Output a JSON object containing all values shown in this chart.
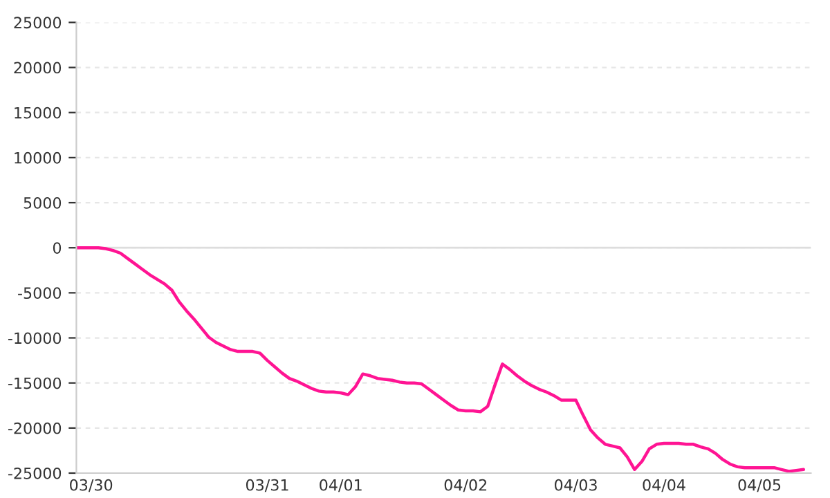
{
  "chart_data": {
    "type": "line",
    "categories": [
      null,
      null,
      "03/30",
      null,
      null,
      null,
      null,
      null,
      null,
      null,
      null,
      null,
      null,
      null,
      null,
      null,
      null,
      null,
      null,
      null,
      null,
      null,
      null,
      null,
      null,
      null,
      "03/31",
      null,
      null,
      null,
      null,
      null,
      null,
      null,
      null,
      null,
      "04/01",
      null,
      null,
      null,
      null,
      null,
      null,
      null,
      null,
      null,
      null,
      null,
      null,
      null,
      null,
      null,
      null,
      "04/02",
      null,
      null,
      null,
      null,
      null,
      null,
      null,
      null,
      null,
      null,
      null,
      null,
      null,
      null,
      "04/03",
      null,
      null,
      null,
      null,
      null,
      null,
      null,
      null,
      null,
      null,
      null,
      "04/04",
      null,
      null,
      null,
      null,
      null,
      null,
      null,
      null,
      null,
      null,
      null,
      null,
      "04/05",
      null,
      null,
      null,
      null,
      null,
      null
    ],
    "series": [
      {
        "color": "#ff1493",
        "values": [
          0,
          0,
          0,
          0,
          -100,
          -300,
          -600,
          -1200,
          -1800,
          -2400,
          -3000,
          -3500,
          -4000,
          -4700,
          -6000,
          -7000,
          -7900,
          -8900,
          -9900,
          -10500,
          -10900,
          -11300,
          -11500,
          -11500,
          -11500,
          -11700,
          -12500,
          -13200,
          -13900,
          -14500,
          -14800,
          -15200,
          -15600,
          -15900,
          -16000,
          -16000,
          -16100,
          -16300,
          -15400,
          -14000,
          -14200,
          -14500,
          -14600,
          -14700,
          -14900,
          -15000,
          -15000,
          -15100,
          -15700,
          -16300,
          -16900,
          -17500,
          -18000,
          -18100,
          -18100,
          -18200,
          -17600,
          -15200,
          -12900,
          -13500,
          -14200,
          -14800,
          -15300,
          -15700,
          -16000,
          -16400,
          -16900,
          -16900,
          -16900,
          -18600,
          -20200,
          -21100,
          -21800,
          -22000,
          -22200,
          -23200,
          -24600,
          -23700,
          -22300,
          -21800,
          -21700,
          -21700,
          -21700,
          -21800,
          -21800,
          -22100,
          -22300,
          -22800,
          -23500,
          -24000,
          -24300,
          -24400,
          -24400,
          -24400,
          -24400,
          -24400,
          -24600,
          -24800,
          -24700,
          -24600
        ]
      }
    ],
    "ylim": [
      -25000,
      25000
    ],
    "yticks": [
      -25000,
      -20000,
      -15000,
      -10000,
      -5000,
      0,
      5000,
      10000,
      15000,
      20000,
      25000
    ],
    "grid": "y",
    "ref_lines": [
      {
        "axis": "y",
        "value": 0,
        "color": "#dddddd"
      }
    ],
    "legend": false,
    "marker": "none",
    "line_style": "solid"
  }
}
